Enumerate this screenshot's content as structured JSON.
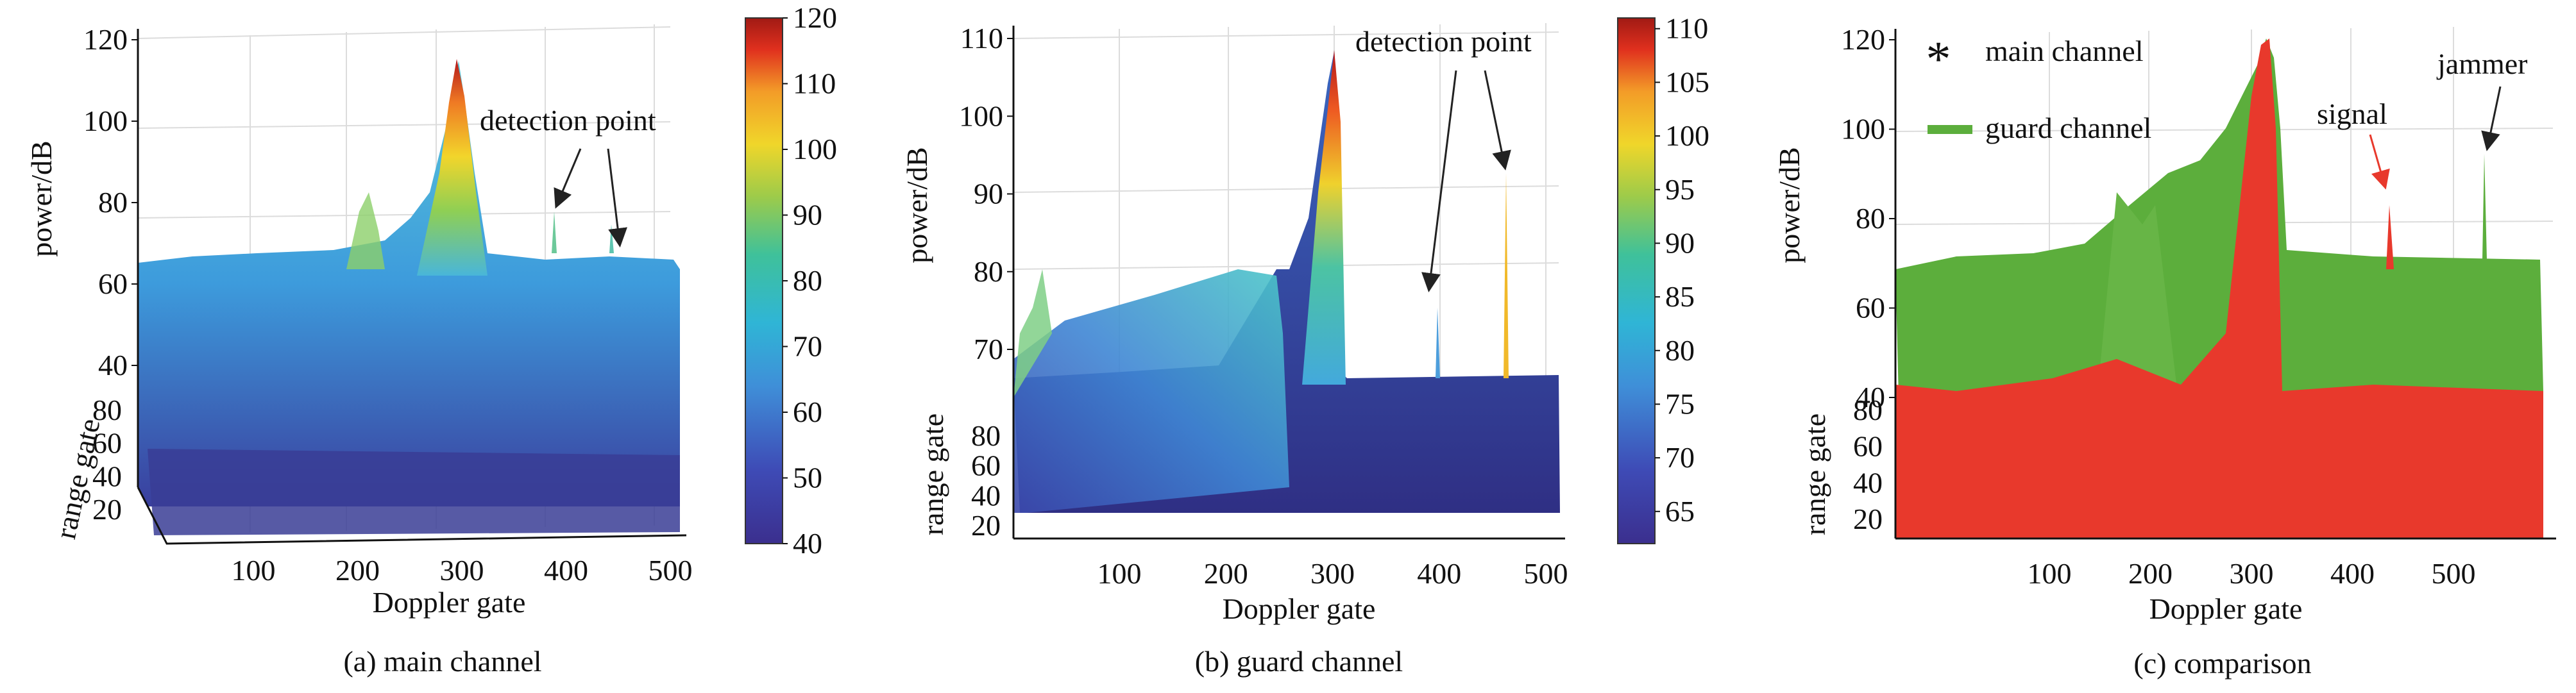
{
  "chart_data": [
    {
      "type": "surface3d",
      "caption": "(a) main channel",
      "xlabel": "Doppler gate",
      "ylabel": "power/dB",
      "zlabel": "range gate",
      "xticks": [
        100,
        200,
        300,
        400,
        500
      ],
      "yticks": [
        40,
        60,
        80,
        100,
        120
      ],
      "zticks": [
        20,
        40,
        60,
        80
      ],
      "xlim": [
        1,
        512
      ],
      "ylim": [
        20,
        120
      ],
      "annotation": "detection point",
      "colorbar": {
        "min": 40,
        "max": 120,
        "ticks": [
          40,
          50,
          60,
          70,
          80,
          90,
          100,
          110,
          120
        ]
      },
      "features": {
        "noise_floor_top": 70,
        "noise_floor_low": 52,
        "peak_gate": 282,
        "peak_value": 118,
        "target_gates": [
          385,
          455
        ],
        "target_values": [
          80,
          73
        ]
      }
    },
    {
      "type": "surface3d",
      "caption": "(b) guard channel",
      "xlabel": "Doppler gate",
      "ylabel": "power/dB",
      "zlabel": "range gate",
      "xticks": [
        100,
        200,
        300,
        400,
        500
      ],
      "yticks": [
        70,
        80,
        90,
        100,
        110
      ],
      "zticks": [
        20,
        40,
        60,
        80
      ],
      "xlim": [
        1,
        512
      ],
      "ylim": [
        60,
        111
      ],
      "annotation": "detection point",
      "colorbar": {
        "min": 62,
        "max": 111,
        "ticks": [
          65,
          70,
          75,
          80,
          85,
          90,
          95,
          100,
          105,
          110
        ]
      },
      "features": {
        "noise_floor_top": 67,
        "peak_gate": 297,
        "peak_value": 109,
        "target_gates": [
          390,
          460
        ],
        "target_values": [
          78,
          93
        ]
      }
    },
    {
      "type": "scatter3d",
      "caption": "(c) comparison",
      "xlabel": "Doppler gate",
      "ylabel": "power/dB",
      "zlabel": "range gate",
      "xticks": [
        100,
        200,
        300,
        400,
        500
      ],
      "yticks": [
        40,
        60,
        80,
        100,
        120
      ],
      "zticks": [
        20,
        40,
        60,
        80
      ],
      "xlim": [
        1,
        512
      ],
      "ylim": [
        20,
        120
      ],
      "legend_position": "top-left",
      "series": [
        {
          "name": "main channel",
          "color": "#e8392c",
          "marker": "star"
        },
        {
          "name": "guard channel",
          "color": "#5cae3c",
          "marker": "line"
        }
      ],
      "annotations": [
        {
          "text": "signal",
          "color": "#e8392c"
        },
        {
          "text": "jammer",
          "color": "#222222"
        }
      ],
      "features": {
        "peak_gate": 292,
        "peak_value": 119,
        "signal_gate": 388,
        "signal_value": 85,
        "jammer_gate": 455,
        "jammer_value": 95
      }
    }
  ]
}
